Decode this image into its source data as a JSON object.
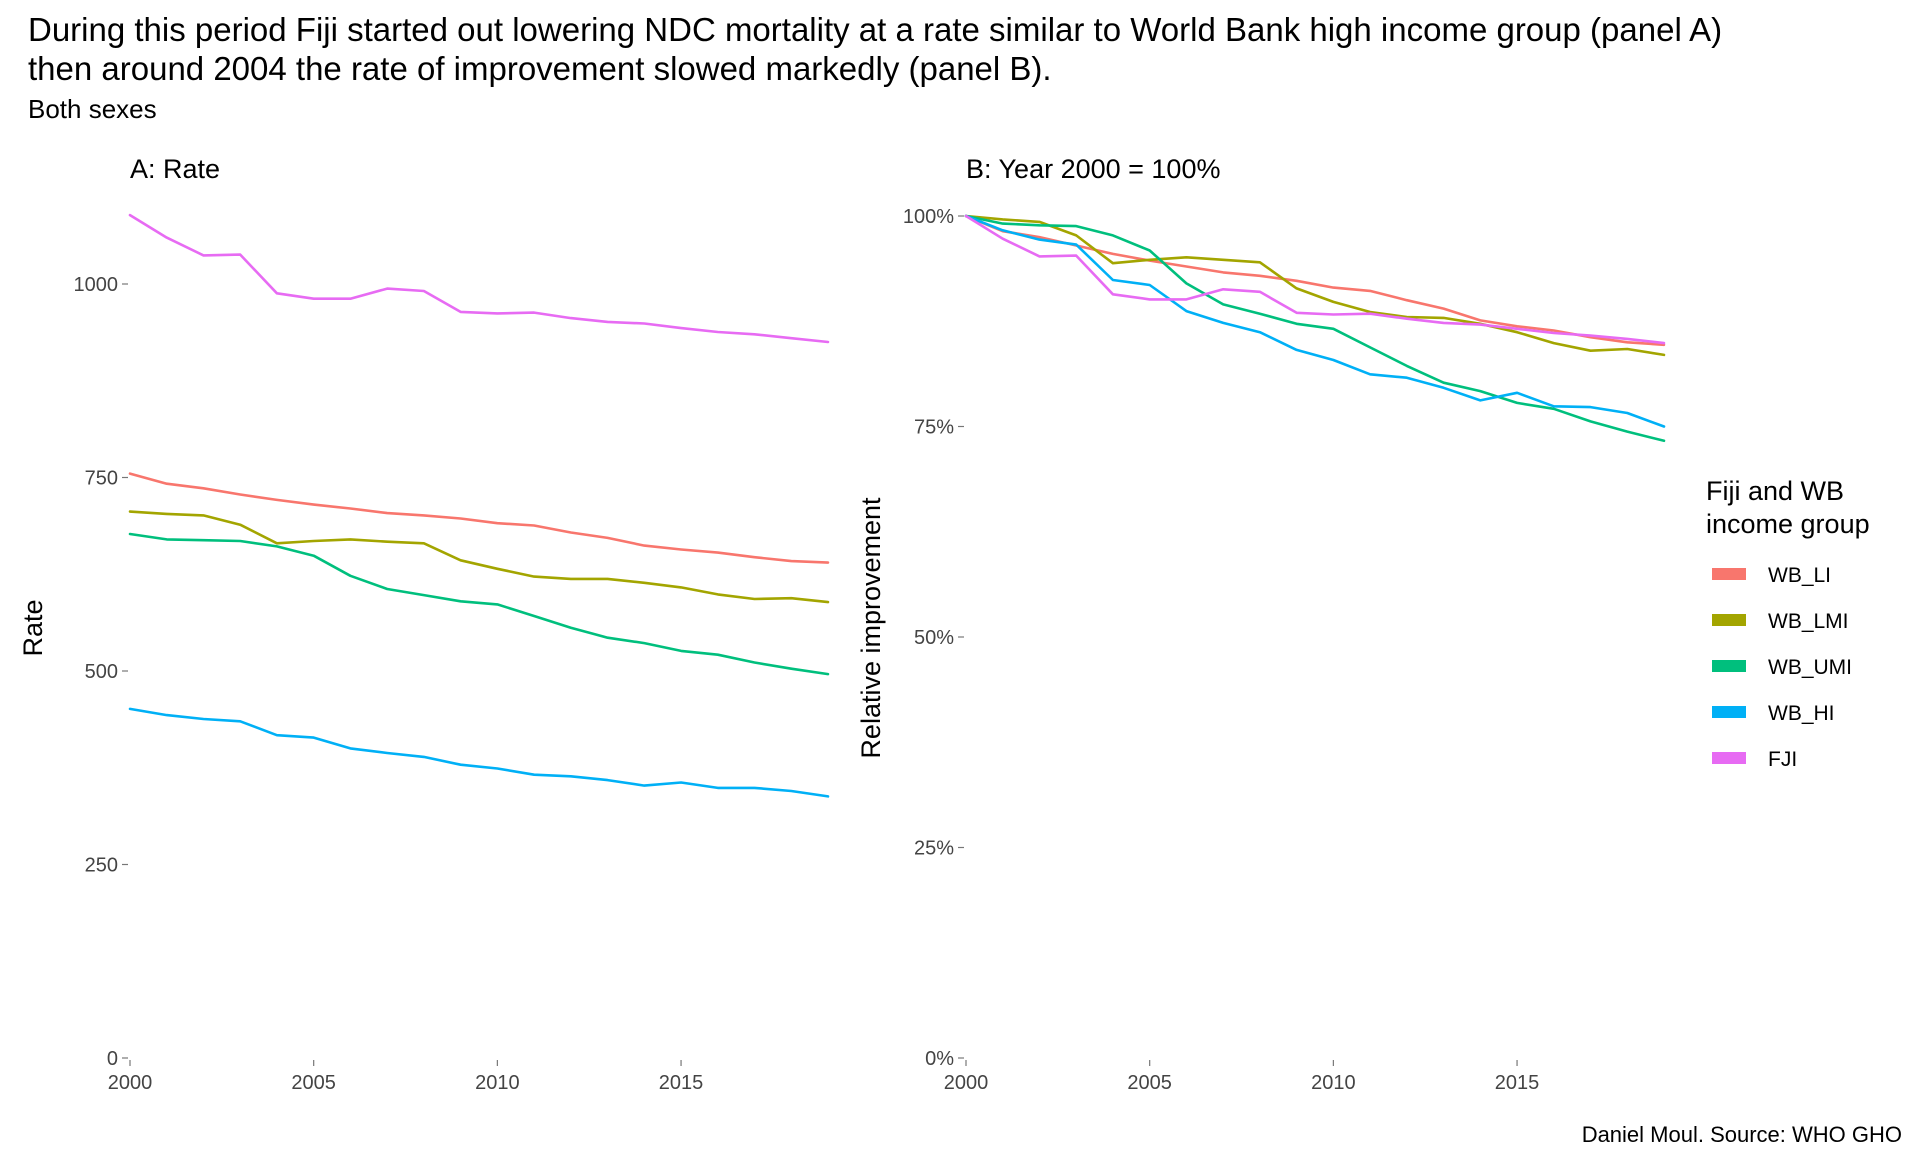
{
  "title_line1": "During this period Fiji started out lowering NDC mortality at a rate similar to World Bank high income group (panel A)",
  "title_line2": "then around 2004 the rate of improvement slowed markedly (panel B).",
  "subtitle": "Both sexes",
  "caption": "Daniel Moul. Source: WHO GHO",
  "legend_title_line1": "Fiji and WB",
  "legend_title_line2": "income group",
  "colors": {
    "WB_LI": "#F8766D",
    "WB_LMI": "#A3A500",
    "WB_UMI": "#00BF7D",
    "WB_HI": "#00B0F6",
    "FJI": "#E76BF3"
  },
  "chart_data": [
    {
      "type": "line",
      "title": "A: Rate",
      "xlabel": "",
      "ylabel": "Rate",
      "xlim": [
        2000,
        2019
      ],
      "ylim": [
        0,
        1100
      ],
      "xticks": [
        2000,
        2005,
        2010,
        2015
      ],
      "yticks": [
        0,
        250,
        500,
        750,
        1000
      ],
      "ytick_labels": [
        "0",
        "250",
        "500",
        "750",
        "1000"
      ],
      "x": [
        2000,
        2001,
        2002,
        2003,
        2004,
        2005,
        2006,
        2007,
        2008,
        2009,
        2010,
        2011,
        2012,
        2013,
        2014,
        2015,
        2016,
        2017,
        2018,
        2019
      ],
      "series": [
        {
          "name": "WB_LI",
          "values": [
            755,
            742,
            736,
            728,
            721,
            715,
            710,
            704,
            701,
            697,
            691,
            688,
            679,
            672,
            662,
            657,
            653,
            647,
            642,
            640
          ]
        },
        {
          "name": "WB_LMI",
          "values": [
            706,
            703,
            701,
            689,
            665,
            668,
            670,
            667,
            665,
            643,
            632,
            622,
            619,
            619,
            614,
            608,
            599,
            593,
            594,
            589
          ]
        },
        {
          "name": "WB_UMI",
          "values": [
            677,
            670,
            669,
            668,
            661,
            649,
            623,
            606,
            598,
            590,
            586,
            571,
            556,
            543,
            536,
            526,
            521,
            511,
            503,
            496
          ]
        },
        {
          "name": "WB_HI",
          "values": [
            451,
            443,
            438,
            435,
            417,
            414,
            400,
            394,
            389,
            379,
            374,
            366,
            364,
            359,
            352,
            356,
            349,
            349,
            345,
            338
          ]
        },
        {
          "name": "FJI",
          "values": [
            1089,
            1060,
            1037,
            1038,
            988,
            981,
            981,
            994,
            991,
            964,
            962,
            963,
            956,
            951,
            949,
            943,
            938,
            935,
            930,
            925
          ]
        }
      ]
    },
    {
      "type": "line",
      "title": "B: Year 2000 = 100%",
      "xlabel": "",
      "ylabel": "Relative improvement",
      "xlim": [
        2000,
        2019
      ],
      "ylim": [
        0,
        1
      ],
      "xticks": [
        2000,
        2005,
        2010,
        2015
      ],
      "yticks": [
        0,
        0.25,
        0.5,
        0.75,
        1
      ],
      "ytick_labels": [
        "0%",
        "25%",
        "50%",
        "75%",
        "100%"
      ],
      "x": [
        2000,
        2001,
        2002,
        2003,
        2004,
        2005,
        2006,
        2007,
        2008,
        2009,
        2010,
        2011,
        2012,
        2013,
        2014,
        2015,
        2016,
        2017,
        2018,
        2019
      ],
      "series": [
        {
          "name": "WB_LI",
          "values": [
            1.0,
            0.982,
            0.975,
            0.965,
            0.955,
            0.947,
            0.94,
            0.933,
            0.929,
            0.923,
            0.915,
            0.911,
            0.9,
            0.89,
            0.876,
            0.869,
            0.864,
            0.856,
            0.85,
            0.847
          ]
        },
        {
          "name": "WB_LMI",
          "values": [
            1.0,
            0.996,
            0.993,
            0.977,
            0.944,
            0.948,
            0.951,
            0.948,
            0.945,
            0.914,
            0.898,
            0.886,
            0.88,
            0.879,
            0.872,
            0.862,
            0.849,
            0.84,
            0.842,
            0.835
          ]
        },
        {
          "name": "WB_UMI",
          "values": [
            1.0,
            0.991,
            0.989,
            0.988,
            0.977,
            0.959,
            0.92,
            0.895,
            0.884,
            0.872,
            0.866,
            0.844,
            0.822,
            0.802,
            0.792,
            0.778,
            0.771,
            0.756,
            0.744,
            0.733
          ]
        },
        {
          "name": "WB_HI",
          "values": [
            1.0,
            0.983,
            0.972,
            0.966,
            0.924,
            0.918,
            0.887,
            0.873,
            0.862,
            0.841,
            0.829,
            0.812,
            0.808,
            0.796,
            0.781,
            0.79,
            0.774,
            0.773,
            0.766,
            0.75
          ]
        },
        {
          "name": "FJI",
          "values": [
            1.0,
            0.973,
            0.952,
            0.953,
            0.907,
            0.901,
            0.901,
            0.913,
            0.91,
            0.885,
            0.883,
            0.884,
            0.878,
            0.873,
            0.871,
            0.866,
            0.861,
            0.858,
            0.854,
            0.849
          ]
        }
      ]
    }
  ],
  "legend": [
    "WB_LI",
    "WB_LMI",
    "WB_UMI",
    "WB_HI",
    "FJI"
  ]
}
